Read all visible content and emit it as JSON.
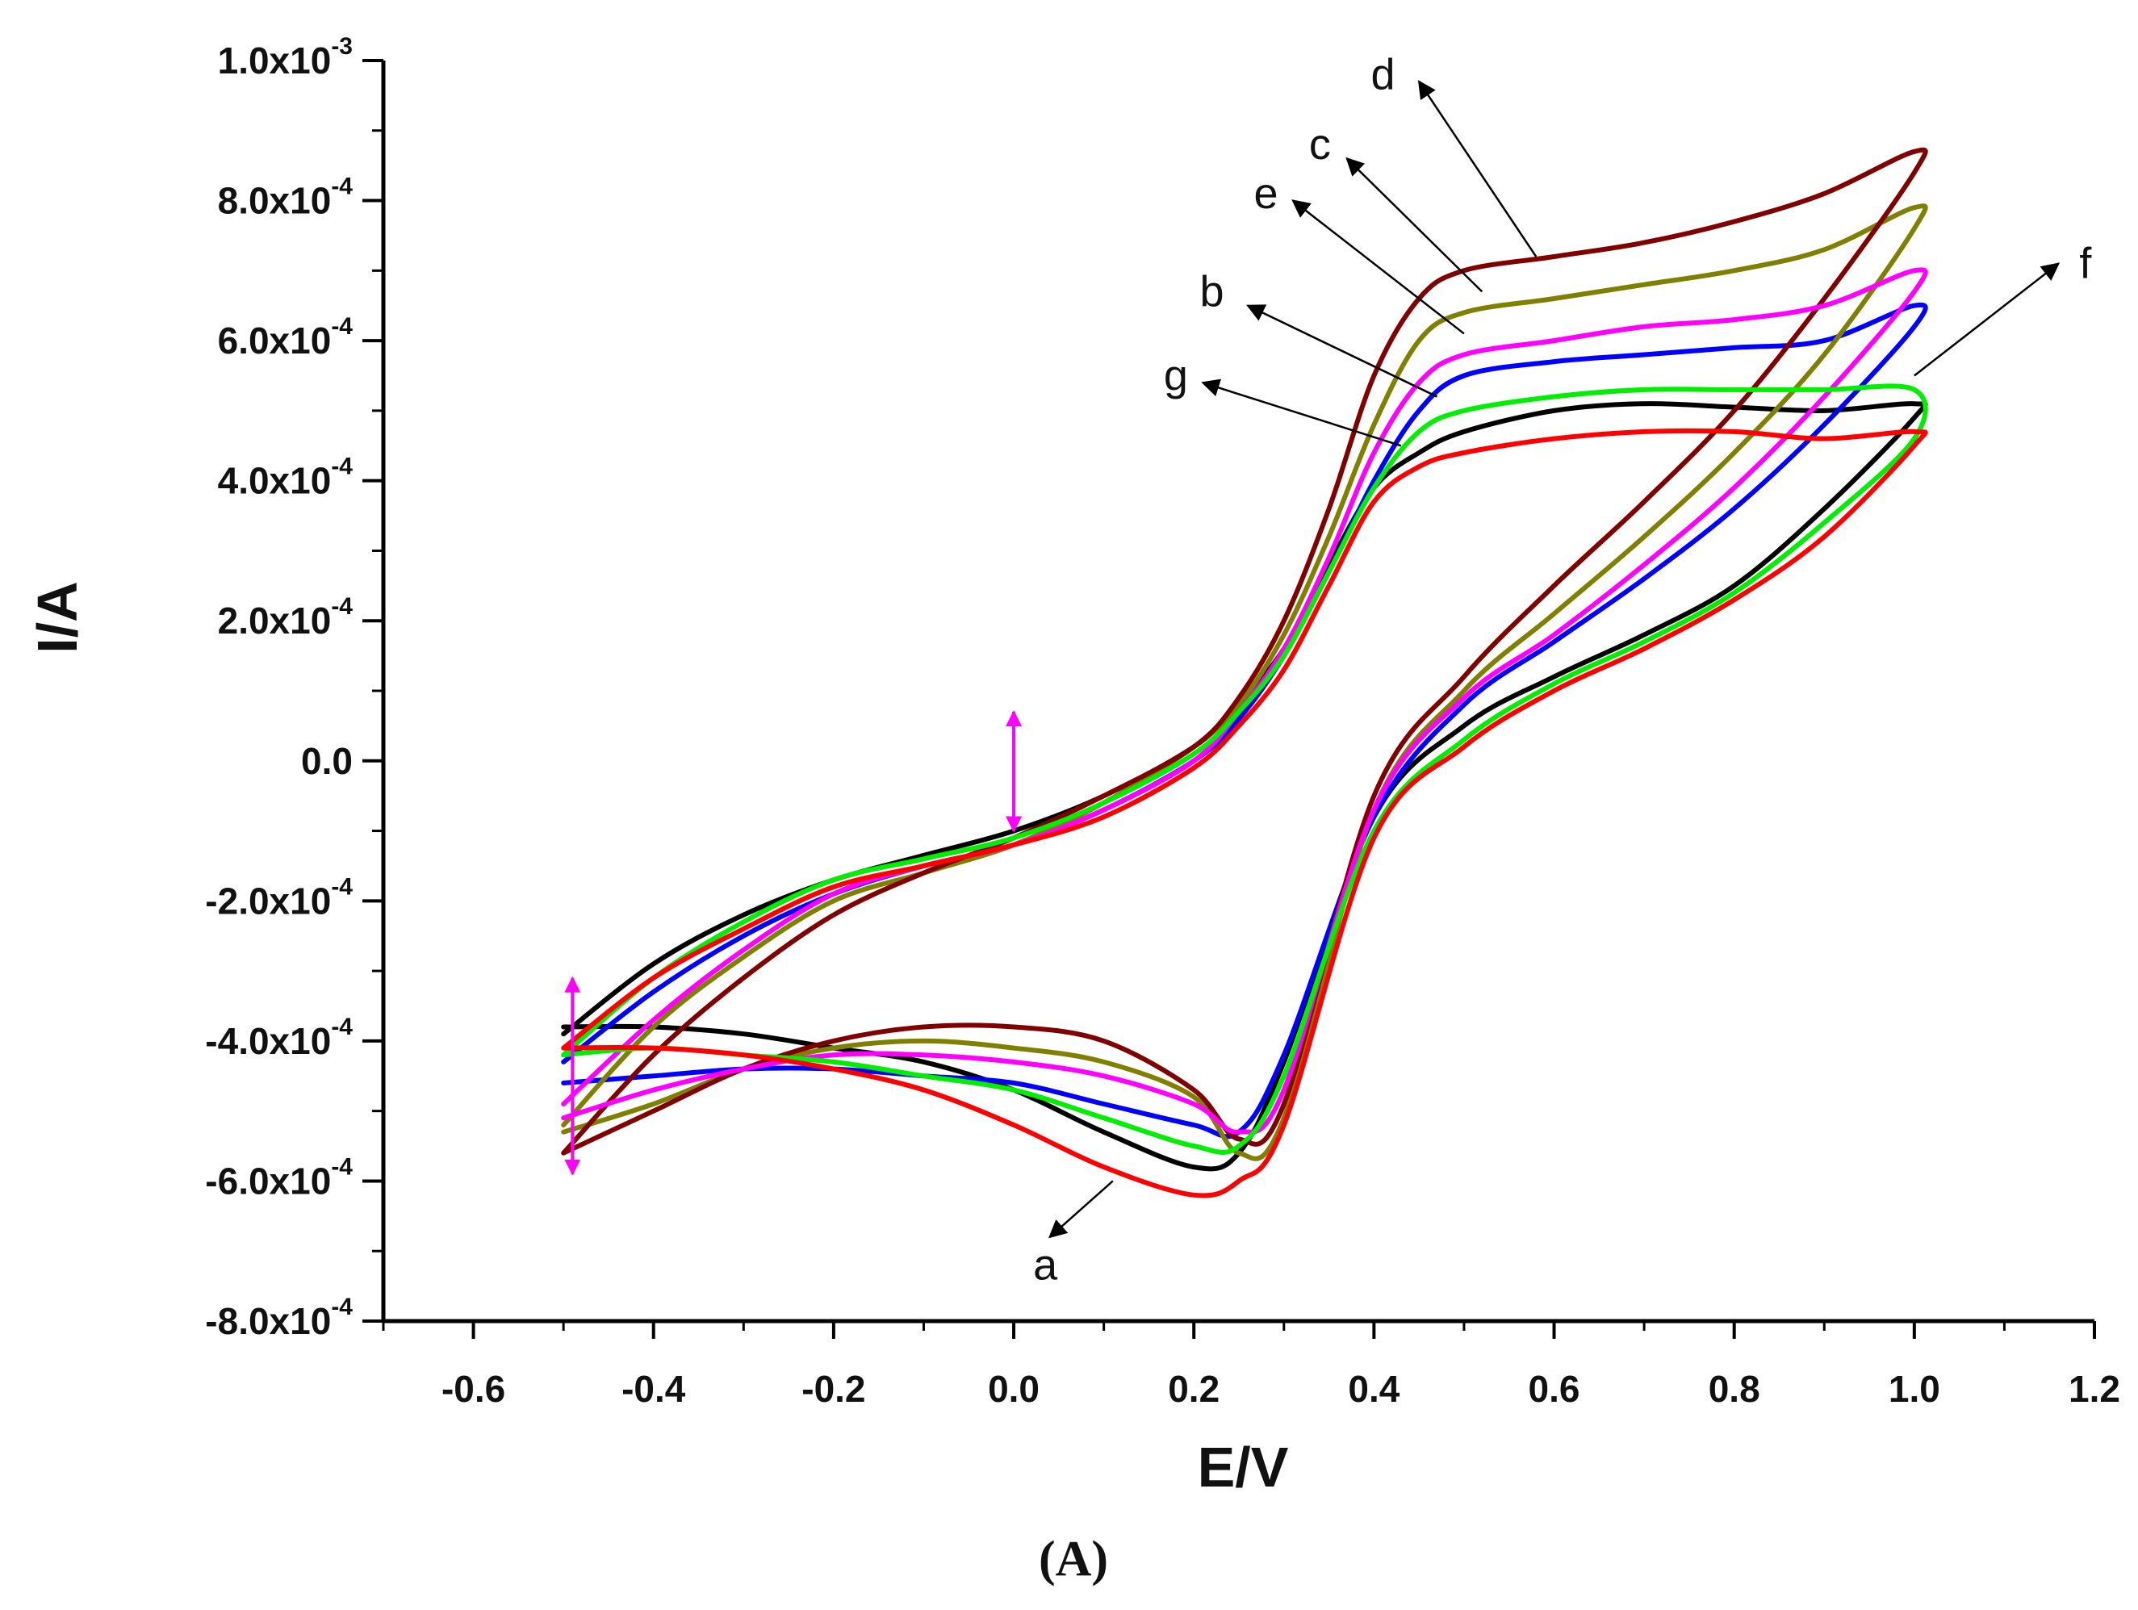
{
  "chart_data": {
    "type": "line",
    "title": "",
    "xlabel": "E/V",
    "ylabel": "I/A",
    "panel_label": "(A)",
    "xlim": [
      -0.7,
      1.2
    ],
    "ylim": [
      -0.0008,
      0.001
    ],
    "grid": false,
    "x_ticks": [
      -0.6,
      -0.4,
      -0.2,
      0.0,
      0.2,
      0.4,
      0.6,
      0.8,
      1.0,
      1.2
    ],
    "x_tick_labels": [
      "-0.6",
      "-0.4",
      "-0.2",
      "0.0",
      "0.2",
      "0.4",
      "0.6",
      "0.8",
      "1.0",
      "1.2"
    ],
    "y_ticks": [
      -0.0008,
      -0.0006,
      -0.0004,
      -0.0002,
      0.0,
      0.0002,
      0.0004,
      0.0006,
      0.0008,
      0.001
    ],
    "y_tick_labels": [
      {
        "mant": "-8.0x10",
        "exp": "-4"
      },
      {
        "mant": "-6.0x10",
        "exp": "-4"
      },
      {
        "mant": "-4.0x10",
        "exp": "-4"
      },
      {
        "mant": "-2.0x10",
        "exp": "-4"
      },
      {
        "mant": "0.0",
        "exp": ""
      },
      {
        "mant": "2.0x10",
        "exp": "-4"
      },
      {
        "mant": "4.0x10",
        "exp": "-4"
      },
      {
        "mant": "6.0x10",
        "exp": "-4"
      },
      {
        "mant": "8.0x10",
        "exp": "-4"
      },
      {
        "mant": "1.0x10",
        "exp": "-3"
      }
    ],
    "series": [
      {
        "name": "a",
        "color": "#000000",
        "x": [
          -0.5,
          -0.4,
          -0.3,
          -0.2,
          -0.1,
          0.0,
          0.1,
          0.2,
          0.25,
          0.3,
          0.35,
          0.4,
          0.45,
          0.5,
          0.6,
          0.7,
          0.8,
          0.9,
          1.0,
          1.0,
          0.9,
          0.8,
          0.7,
          0.6,
          0.5,
          0.4,
          0.3,
          0.25,
          0.2,
          0.1,
          0.0,
          -0.1,
          -0.2,
          -0.3,
          -0.4,
          -0.5
        ],
        "y": [
          -0.00039,
          -0.00029,
          -0.00022,
          -0.00017,
          -0.000135,
          -0.0001,
          -5e-05,
          2e-05,
          8e-05,
          0.00016,
          0.00028,
          0.00039,
          0.00044,
          0.00047,
          0.0005,
          0.00051,
          0.000505,
          0.0005,
          0.00051,
          0.00049,
          0.00036,
          0.00025,
          0.00018,
          0.00012,
          5e-05,
          -8e-05,
          -0.00043,
          -0.00056,
          -0.00058,
          -0.00053,
          -0.00047,
          -0.00043,
          -0.00041,
          -0.00039,
          -0.00038,
          -0.00038
        ]
      },
      {
        "name": "b",
        "color": "#0000ff",
        "x": [
          -0.5,
          -0.4,
          -0.3,
          -0.2,
          -0.1,
          0.0,
          0.1,
          0.2,
          0.25,
          0.3,
          0.35,
          0.4,
          0.45,
          0.5,
          0.6,
          0.7,
          0.8,
          0.9,
          1.0,
          1.0,
          0.9,
          0.8,
          0.7,
          0.6,
          0.5,
          0.4,
          0.3,
          0.25,
          0.2,
          0.1,
          0.0,
          -0.1,
          -0.2,
          -0.3,
          -0.4,
          -0.5
        ],
        "y": [
          -0.00043,
          -0.00033,
          -0.00025,
          -0.00019,
          -0.00015,
          -0.00012,
          -7e-05,
          0.0,
          6e-05,
          0.00015,
          0.00027,
          0.0004,
          0.0005,
          0.00055,
          0.00057,
          0.00058,
          0.00059,
          0.0006,
          0.00065,
          0.00062,
          0.00048,
          0.00036,
          0.00026,
          0.00017,
          8e-05,
          -8e-05,
          -0.00042,
          -0.00053,
          -0.00052,
          -0.00049,
          -0.00046,
          -0.00045,
          -0.00044,
          -0.00044,
          -0.00045,
          -0.00046
        ]
      },
      {
        "name": "c",
        "color": "#808000",
        "x": [
          -0.5,
          -0.4,
          -0.3,
          -0.2,
          -0.1,
          0.0,
          0.1,
          0.2,
          0.25,
          0.3,
          0.35,
          0.4,
          0.45,
          0.5,
          0.6,
          0.7,
          0.8,
          0.9,
          1.0,
          1.0,
          0.9,
          0.8,
          0.7,
          0.6,
          0.5,
          0.4,
          0.3,
          0.25,
          0.2,
          0.1,
          0.0,
          -0.1,
          -0.2,
          -0.3,
          -0.4,
          -0.5
        ],
        "y": [
          -0.00052,
          -0.00038,
          -0.00028,
          -0.0002,
          -0.00016,
          -0.00012,
          -6e-05,
          2e-05,
          8e-05,
          0.00018,
          0.00032,
          0.00048,
          0.0006,
          0.00064,
          0.00066,
          0.00068,
          0.0007,
          0.00073,
          0.00079,
          0.00076,
          0.00058,
          0.00044,
          0.00032,
          0.00021,
          0.0001,
          -7e-05,
          -0.00051,
          -0.00056,
          -0.00048,
          -0.00043,
          -0.00041,
          -0.0004,
          -0.00041,
          -0.00044,
          -0.00049,
          -0.00053
        ]
      },
      {
        "name": "d",
        "color": "#800000",
        "x": [
          -0.5,
          -0.4,
          -0.3,
          -0.2,
          -0.1,
          0.0,
          0.1,
          0.2,
          0.25,
          0.3,
          0.35,
          0.4,
          0.45,
          0.5,
          0.6,
          0.7,
          0.8,
          0.9,
          1.0,
          1.0,
          0.9,
          0.8,
          0.7,
          0.6,
          0.5,
          0.4,
          0.3,
          0.25,
          0.2,
          0.1,
          0.0,
          -0.1,
          -0.2,
          -0.3,
          -0.4,
          -0.5
        ],
        "y": [
          -0.00056,
          -0.00042,
          -0.00031,
          -0.00022,
          -0.00016,
          -0.00011,
          -5e-05,
          2e-05,
          9e-05,
          0.0002,
          0.00036,
          0.00055,
          0.00066,
          0.0007,
          0.00072,
          0.00074,
          0.00077,
          0.00081,
          0.00087,
          0.00084,
          0.00066,
          0.0005,
          0.00037,
          0.00025,
          0.00012,
          -5e-05,
          -0.00049,
          -0.00054,
          -0.00047,
          -0.0004,
          -0.00038,
          -0.00038,
          -0.0004,
          -0.00044,
          -0.0005,
          -0.00056
        ]
      },
      {
        "name": "e",
        "color": "#ff00ff",
        "x": [
          -0.5,
          -0.4,
          -0.3,
          -0.2,
          -0.1,
          0.0,
          0.1,
          0.2,
          0.25,
          0.3,
          0.35,
          0.4,
          0.45,
          0.5,
          0.6,
          0.7,
          0.8,
          0.9,
          1.0,
          1.0,
          0.9,
          0.8,
          0.7,
          0.6,
          0.5,
          0.4,
          0.3,
          0.25,
          0.2,
          0.1,
          0.0,
          -0.1,
          -0.2,
          -0.3,
          -0.4,
          -0.5
        ],
        "y": [
          -0.00049,
          -0.00037,
          -0.00027,
          -0.00019,
          -0.00015,
          -0.00012,
          -7e-05,
          0.0,
          7e-05,
          0.00016,
          0.00029,
          0.00044,
          0.00054,
          0.00058,
          0.0006,
          0.00062,
          0.00063,
          0.00065,
          0.0007,
          0.00067,
          0.00052,
          0.00039,
          0.00028,
          0.00018,
          9e-05,
          -7e-05,
          -0.00047,
          -0.00053,
          -0.00049,
          -0.00045,
          -0.00043,
          -0.00042,
          -0.00042,
          -0.00044,
          -0.00047,
          -0.00051
        ]
      },
      {
        "name": "f",
        "color": "#00ee00",
        "x": [
          -0.5,
          -0.4,
          -0.3,
          -0.2,
          -0.1,
          0.0,
          0.1,
          0.2,
          0.25,
          0.3,
          0.35,
          0.4,
          0.45,
          0.5,
          0.6,
          0.7,
          0.8,
          0.9,
          1.0,
          1.0,
          0.9,
          0.8,
          0.7,
          0.6,
          0.5,
          0.4,
          0.3,
          0.25,
          0.2,
          0.1,
          0.0,
          -0.1,
          -0.2,
          -0.3,
          -0.4,
          -0.5
        ],
        "y": [
          -0.00042,
          -0.00031,
          -0.00023,
          -0.00017,
          -0.00014,
          -0.00011,
          -6e-05,
          1e-05,
          7e-05,
          0.00015,
          0.00027,
          0.00039,
          0.00047,
          0.0005,
          0.00052,
          0.00053,
          0.00053,
          0.00053,
          0.00053,
          0.00046,
          0.00034,
          0.00024,
          0.00017,
          0.00011,
          3e-05,
          -0.0001,
          -0.00045,
          -0.00055,
          -0.00055,
          -0.00051,
          -0.00047,
          -0.00045,
          -0.00043,
          -0.00042,
          -0.00041,
          -0.00042
        ]
      },
      {
        "name": "g",
        "color": "#ff0000",
        "x": [
          -0.5,
          -0.4,
          -0.3,
          -0.2,
          -0.1,
          0.0,
          0.1,
          0.2,
          0.25,
          0.3,
          0.35,
          0.4,
          0.45,
          0.5,
          0.6,
          0.7,
          0.8,
          0.9,
          1.0,
          1.0,
          0.9,
          0.8,
          0.7,
          0.6,
          0.5,
          0.4,
          0.3,
          0.25,
          0.2,
          0.1,
          0.0,
          -0.1,
          -0.2,
          -0.3,
          -0.4,
          -0.5
        ],
        "y": [
          -0.00041,
          -0.00031,
          -0.00024,
          -0.00018,
          -0.00015,
          -0.00012,
          -8e-05,
          -1e-05,
          5e-05,
          0.00013,
          0.00025,
          0.00037,
          0.00042,
          0.00044,
          0.00046,
          0.00047,
          0.00047,
          0.00046,
          0.00047,
          0.00045,
          0.00032,
          0.00023,
          0.00016,
          0.0001,
          2e-05,
          -0.00011,
          -0.00052,
          -0.0006,
          -0.00062,
          -0.00058,
          -0.00052,
          -0.00047,
          -0.00044,
          -0.00042,
          -0.00041,
          -0.00041
        ]
      }
    ],
    "annotations": [
      {
        "label": "a",
        "text_at": [
          0.035,
          -0.00072
        ],
        "arrow_from": [
          0.11,
          -0.0006
        ],
        "arrow_to": [
          0.04,
          -0.00068
        ]
      },
      {
        "label": "b",
        "text_at": [
          0.22,
          0.00067
        ],
        "arrow_from": [
          0.47,
          0.00052
        ],
        "arrow_to": [
          0.26,
          0.00065
        ]
      },
      {
        "label": "c",
        "text_at": [
          0.34,
          0.00088
        ],
        "arrow_from": [
          0.52,
          0.00067
        ],
        "arrow_to": [
          0.37,
          0.00086
        ]
      },
      {
        "label": "d",
        "text_at": [
          0.41,
          0.00098
        ],
        "arrow_from": [
          0.58,
          0.00072
        ],
        "arrow_to": [
          0.45,
          0.00097
        ]
      },
      {
        "label": "e",
        "text_at": [
          0.28,
          0.00081
        ],
        "arrow_from": [
          0.5,
          0.00061
        ],
        "arrow_to": [
          0.31,
          0.0008
        ]
      },
      {
        "label": "f",
        "text_at": [
          1.19,
          0.00071
        ],
        "arrow_from": [
          1.0,
          0.00055
        ],
        "arrow_to": [
          1.16,
          0.00071
        ]
      },
      {
        "label": "g",
        "text_at": [
          0.18,
          0.00055
        ],
        "arrow_from": [
          0.43,
          0.00045
        ],
        "arrow_to": [
          0.21,
          0.00054
        ]
      }
    ],
    "markers": [
      {
        "color": "#ff00ff",
        "x": 0.0,
        "y_range": [
          -0.0001,
          7e-05
        ]
      },
      {
        "color": "#ff00ff",
        "x": -0.49,
        "y_range": [
          -0.00059,
          -0.00031
        ]
      }
    ]
  }
}
